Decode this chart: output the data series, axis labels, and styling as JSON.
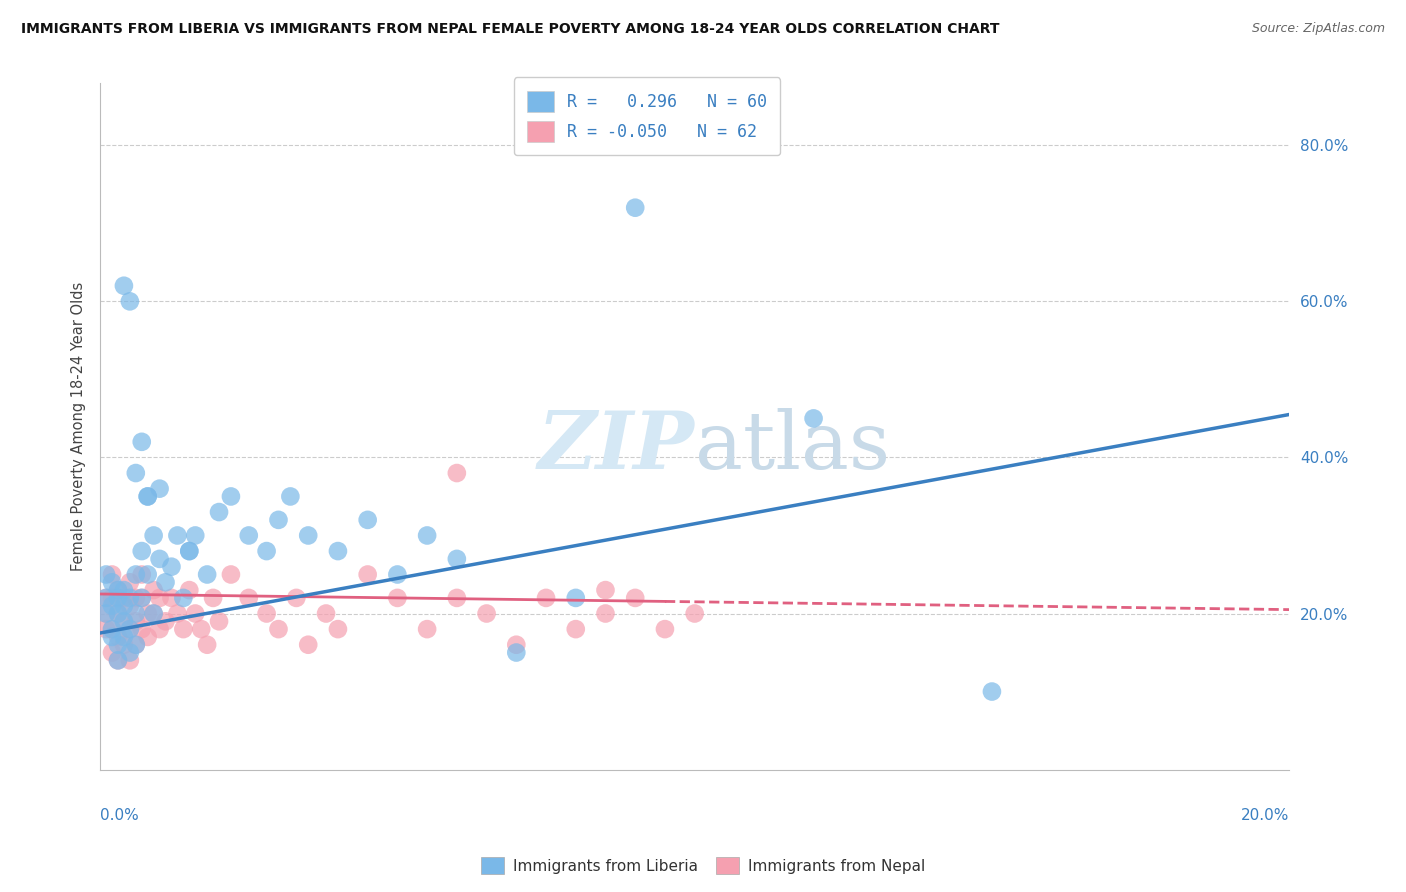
{
  "title": "IMMIGRANTS FROM LIBERIA VS IMMIGRANTS FROM NEPAL FEMALE POVERTY AMONG 18-24 YEAR OLDS CORRELATION CHART",
  "source": "Source: ZipAtlas.com",
  "ylabel": "Female Poverty Among 18-24 Year Olds",
  "xlim": [
    0.0,
    0.2
  ],
  "ylim": [
    0.0,
    0.88
  ],
  "yticks": [
    0.2,
    0.4,
    0.6,
    0.8
  ],
  "ytick_labels": [
    "20.0%",
    "40.0%",
    "60.0%",
    "80.0%"
  ],
  "liberia_R": 0.296,
  "liberia_N": 60,
  "nepal_R": -0.05,
  "nepal_N": 62,
  "liberia_color": "#7ab8e8",
  "nepal_color": "#f5a0b0",
  "liberia_line_color": "#3a7fc1",
  "nepal_line_color": "#e06080",
  "watermark_color": "#d5e8f5",
  "lib_line_y0": 0.175,
  "lib_line_y1": 0.455,
  "nep_line_y0": 0.225,
  "nep_line_y1": 0.205,
  "liberia_scatter_x": [
    0.001,
    0.001,
    0.001,
    0.002,
    0.002,
    0.002,
    0.002,
    0.003,
    0.003,
    0.003,
    0.003,
    0.003,
    0.004,
    0.004,
    0.004,
    0.004,
    0.005,
    0.005,
    0.005,
    0.006,
    0.006,
    0.006,
    0.007,
    0.007,
    0.008,
    0.008,
    0.009,
    0.009,
    0.01,
    0.011,
    0.012,
    0.013,
    0.014,
    0.015,
    0.016,
    0.018,
    0.02,
    0.022,
    0.025,
    0.028,
    0.03,
    0.032,
    0.035,
    0.04,
    0.045,
    0.05,
    0.055,
    0.06,
    0.07,
    0.08,
    0.004,
    0.005,
    0.006,
    0.007,
    0.008,
    0.01,
    0.015,
    0.09,
    0.12,
    0.15
  ],
  "liberia_scatter_y": [
    0.22,
    0.25,
    0.2,
    0.18,
    0.24,
    0.21,
    0.17,
    0.23,
    0.2,
    0.22,
    0.16,
    0.14,
    0.19,
    0.23,
    0.17,
    0.21,
    0.22,
    0.18,
    0.15,
    0.25,
    0.2,
    0.16,
    0.28,
    0.22,
    0.35,
    0.25,
    0.3,
    0.2,
    0.27,
    0.24,
    0.26,
    0.3,
    0.22,
    0.28,
    0.3,
    0.25,
    0.33,
    0.35,
    0.3,
    0.28,
    0.32,
    0.35,
    0.3,
    0.28,
    0.32,
    0.25,
    0.3,
    0.27,
    0.15,
    0.22,
    0.62,
    0.6,
    0.38,
    0.42,
    0.35,
    0.36,
    0.28,
    0.72,
    0.45,
    0.1
  ],
  "nepal_scatter_x": [
    0.001,
    0.001,
    0.001,
    0.002,
    0.002,
    0.002,
    0.002,
    0.003,
    0.003,
    0.003,
    0.003,
    0.004,
    0.004,
    0.004,
    0.005,
    0.005,
    0.005,
    0.005,
    0.006,
    0.006,
    0.006,
    0.007,
    0.007,
    0.007,
    0.008,
    0.008,
    0.009,
    0.009,
    0.01,
    0.01,
    0.011,
    0.012,
    0.013,
    0.014,
    0.015,
    0.016,
    0.017,
    0.018,
    0.019,
    0.02,
    0.022,
    0.025,
    0.028,
    0.03,
    0.033,
    0.035,
    0.038,
    0.04,
    0.045,
    0.05,
    0.055,
    0.06,
    0.065,
    0.07,
    0.075,
    0.08,
    0.085,
    0.09,
    0.095,
    0.1,
    0.06,
    0.085
  ],
  "nepal_scatter_y": [
    0.22,
    0.2,
    0.18,
    0.25,
    0.22,
    0.18,
    0.15,
    0.2,
    0.23,
    0.17,
    0.14,
    0.22,
    0.19,
    0.16,
    0.24,
    0.21,
    0.18,
    0.14,
    0.22,
    0.19,
    0.16,
    0.25,
    0.22,
    0.18,
    0.2,
    0.17,
    0.23,
    0.2,
    0.22,
    0.18,
    0.19,
    0.22,
    0.2,
    0.18,
    0.23,
    0.2,
    0.18,
    0.16,
    0.22,
    0.19,
    0.25,
    0.22,
    0.2,
    0.18,
    0.22,
    0.16,
    0.2,
    0.18,
    0.25,
    0.22,
    0.18,
    0.22,
    0.2,
    0.16,
    0.22,
    0.18,
    0.2,
    0.22,
    0.18,
    0.2,
    0.38,
    0.23
  ]
}
